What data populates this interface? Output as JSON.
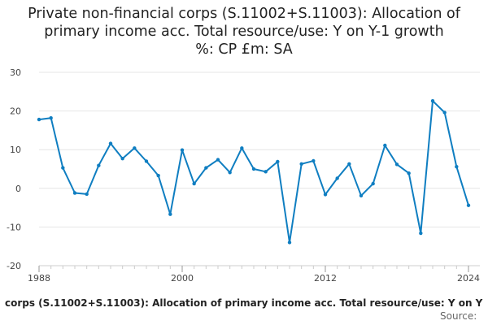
{
  "title_lines": [
    "Private non-financial corps (S.11002+S.11003): Allocation of",
    "primary income acc. Total resource/use: Y on Y-1 growth",
    "%: CP £m: SA"
  ],
  "legend_text": "corps (S.11002+S.11003): Allocation of primary income acc. Total resource/use: Y on Y",
  "source_label": "Source:",
  "colors": {
    "series": "#0f7ec1",
    "grid": "#e6e6e6",
    "axis": "#cccccc"
  },
  "chart_data": {
    "type": "line",
    "title": "Private non-financial corps (S.11002+S.11003): Allocation of primary income acc. Total resource/use: Y on Y-1 growth %: CP £m: SA",
    "xlabel": "",
    "ylabel": "",
    "xlim": [
      1988,
      2024
    ],
    "ylim": [
      -20,
      30
    ],
    "yticks": [
      30,
      20,
      10,
      0,
      -10,
      -20
    ],
    "ytick_labels": [
      "30",
      "20",
      "10",
      "0",
      "-10",
      "-20"
    ],
    "xticks": [
      1988,
      2000,
      2012,
      2024
    ],
    "xtick_labels": [
      "1988",
      "2000",
      "2012",
      "2024"
    ],
    "grid": true,
    "series": [
      {
        "name": "Private non-financial corps (S.11002+S.11003): Allocation of primary income acc. Total resource/use: Y on Y-1 growth %: CP £m: SA",
        "x": [
          1988,
          1989,
          1990,
          1991,
          1992,
          1993,
          1994,
          1995,
          1996,
          1997,
          1998,
          1999,
          2000,
          2001,
          2002,
          2003,
          2004,
          2005,
          2006,
          2007,
          2008,
          2009,
          2010,
          2011,
          2012,
          2013,
          2014,
          2015,
          2016,
          2017,
          2018,
          2019,
          2020,
          2021,
          2022,
          2023,
          2024
        ],
        "values": [
          17.8,
          18.2,
          5.3,
          -1.2,
          -1.5,
          5.9,
          11.6,
          7.7,
          10.4,
          7.0,
          3.3,
          -6.7,
          9.9,
          1.2,
          5.3,
          7.4,
          4.1,
          10.4,
          5.0,
          4.3,
          6.9,
          -14.0,
          6.3,
          7.1,
          -1.6,
          2.6,
          6.3,
          -1.9,
          1.2,
          11.1,
          6.2,
          3.9,
          -11.6,
          22.6,
          19.6,
          5.6,
          -4.4
        ]
      }
    ]
  }
}
